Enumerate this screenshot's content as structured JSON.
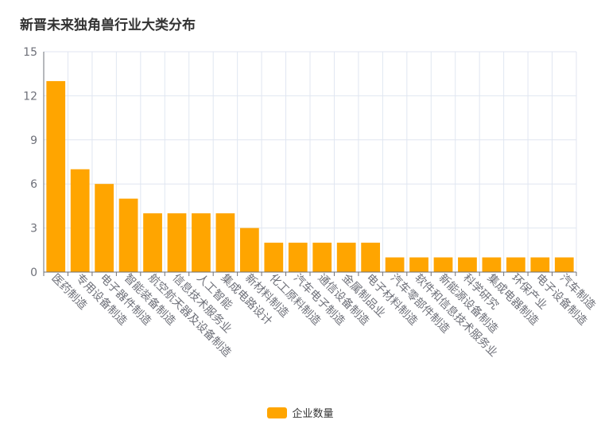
{
  "chart_data": {
    "type": "bar",
    "title": "新晋未来独角兽行业大类分布",
    "categories": [
      "医药制造",
      "专用设备制造",
      "电子器件制造",
      "智能装备制造",
      "航空航天器及设备制造",
      "信息技术服务业",
      "人工智能",
      "集成电路设计",
      "新材料制造",
      "化工原料制造",
      "汽车电子制造",
      "通信设备制造",
      "金属制品业",
      "电子材料制造",
      "汽车零部件制造",
      "软件和信息技术服务业",
      "新能源设备制造",
      "科学研究",
      "集成电器制造",
      "环保产业",
      "电子设备制造",
      "汽车制造"
    ],
    "series": [
      {
        "name": "企业数量",
        "values": [
          13,
          7,
          6,
          5,
          4,
          4,
          4,
          4,
          3,
          2,
          2,
          2,
          2,
          2,
          1,
          1,
          1,
          1,
          1,
          1,
          1,
          1
        ]
      }
    ],
    "ylim": [
      0,
      15
    ],
    "yticks": [
      0,
      3,
      6,
      9,
      12,
      15
    ],
    "grid": true,
    "legend_position": "bottom",
    "colors": {
      "bar": "#FFA500",
      "axis": "#6E7079",
      "grid": "#E0E6F1",
      "label": "#6E7079"
    }
  }
}
